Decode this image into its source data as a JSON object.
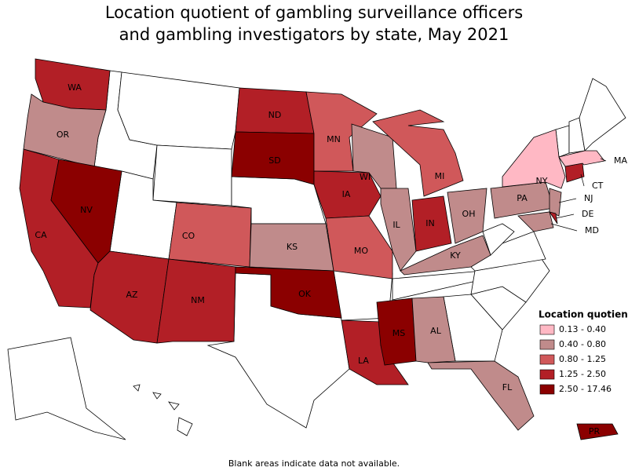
{
  "title_lines": [
    "Location quotient of gambling surveillance officers",
    "and gambling investigators by state, May 2021"
  ],
  "legend": {
    "title": "Location quotient",
    "bins": [
      {
        "label": "0.13 - 0.40",
        "color": "#ffb8c4"
      },
      {
        "label": "0.40 - 0.80",
        "color": "#c08b8b"
      },
      {
        "label": "0.80 - 1.25",
        "color": "#d0585a"
      },
      {
        "label": "1.25 - 2.50",
        "color": "#b21f26"
      },
      {
        "label": "2.50 - 17.46",
        "color": "#8b0000"
      }
    ]
  },
  "states": [
    {
      "label": "WA",
      "bin": 3
    },
    {
      "label": "OR",
      "bin": 1
    },
    {
      "label": "CA",
      "bin": 3
    },
    {
      "label": "NV",
      "bin": 4
    },
    {
      "label": "AZ",
      "bin": 3
    },
    {
      "label": "CO",
      "bin": 2
    },
    {
      "label": "NM",
      "bin": 3
    },
    {
      "label": "ND",
      "bin": 3
    },
    {
      "label": "SD",
      "bin": 4
    },
    {
      "label": "KS",
      "bin": 1
    },
    {
      "label": "OK",
      "bin": 4
    },
    {
      "label": "MN",
      "bin": 2
    },
    {
      "label": "IA",
      "bin": 3
    },
    {
      "label": "MO",
      "bin": 2
    },
    {
      "label": "LA",
      "bin": 3
    },
    {
      "label": "WI",
      "bin": 1
    },
    {
      "label": "IL",
      "bin": 1
    },
    {
      "label": "MI",
      "bin": 2
    },
    {
      "label": "IN",
      "bin": 3
    },
    {
      "label": "OH",
      "bin": 1
    },
    {
      "label": "KY",
      "bin": 1
    },
    {
      "label": "MS",
      "bin": 4
    },
    {
      "label": "AL",
      "bin": 1
    },
    {
      "label": "FL",
      "bin": 1
    },
    {
      "label": "PA",
      "bin": 1
    },
    {
      "label": "NY",
      "bin": 0
    },
    {
      "label": "NJ",
      "bin": 1
    },
    {
      "label": "DE",
      "bin": 3
    },
    {
      "label": "MD",
      "bin": 1
    },
    {
      "label": "CT",
      "bin": 3
    },
    {
      "label": "MA",
      "bin": 0
    },
    {
      "label": "PR",
      "bin": 4
    }
  ],
  "note": "Blank areas indicate data not available."
}
